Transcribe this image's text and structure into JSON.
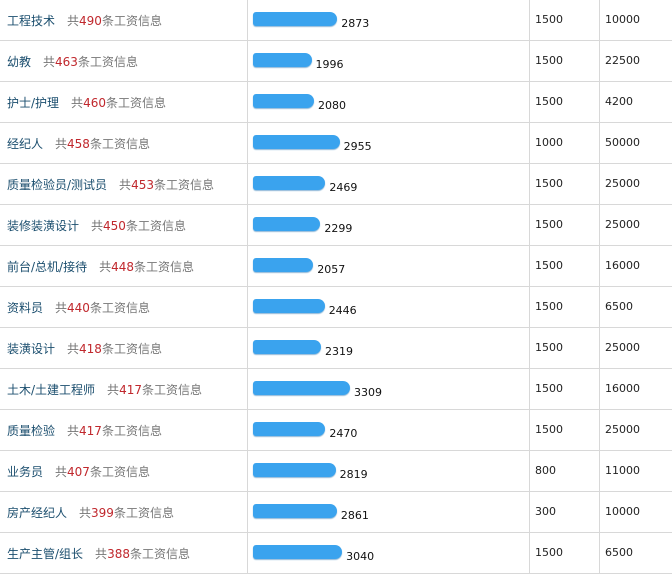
{
  "table": {
    "count_prefix": "共",
    "count_suffix": "条工资信息",
    "rows": [
      {
        "job": "工程技术",
        "count": 490,
        "average": 2873,
        "min": 1500,
        "max": 10000
      },
      {
        "job": "幼教",
        "count": 463,
        "average": 1996,
        "min": 1500,
        "max": 22500
      },
      {
        "job": "护士/护理",
        "count": 460,
        "average": 2080,
        "min": 1500,
        "max": 4200
      },
      {
        "job": "经纪人",
        "count": 458,
        "average": 2955,
        "min": 1000,
        "max": 50000
      },
      {
        "job": "质量检验员/测试员",
        "count": 453,
        "average": 2469,
        "min": 1500,
        "max": 25000
      },
      {
        "job": "装修装潢设计",
        "count": 450,
        "average": 2299,
        "min": 1500,
        "max": 25000
      },
      {
        "job": "前台/总机/接待",
        "count": 448,
        "average": 2057,
        "min": 1500,
        "max": 16000
      },
      {
        "job": "资料员",
        "count": 440,
        "average": 2446,
        "min": 1500,
        "max": 6500
      },
      {
        "job": "装潢设计",
        "count": 418,
        "average": 2319,
        "min": 1500,
        "max": 25000
      },
      {
        "job": "土木/土建工程师",
        "count": 417,
        "average": 3309,
        "min": 1500,
        "max": 16000
      },
      {
        "job": "质量检验",
        "count": 417,
        "average": 2470,
        "min": 1500,
        "max": 25000
      },
      {
        "job": "业务员",
        "count": 407,
        "average": 2819,
        "min": 800,
        "max": 11000
      },
      {
        "job": "房产经纪人",
        "count": 399,
        "average": 2861,
        "min": 300,
        "max": 10000
      },
      {
        "job": "生产主管/组长",
        "count": 388,
        "average": 3040,
        "min": 1500,
        "max": 6500
      }
    ]
  }
}
